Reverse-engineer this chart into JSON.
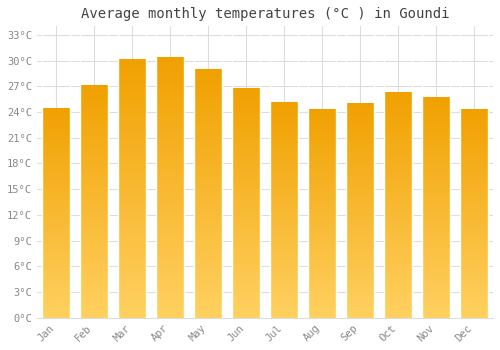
{
  "title": "Average monthly temperatures (°C ) in Goundi",
  "months": [
    "Jan",
    "Feb",
    "Mar",
    "Apr",
    "May",
    "Jun",
    "Jul",
    "Aug",
    "Sep",
    "Oct",
    "Nov",
    "Dec"
  ],
  "values": [
    24.5,
    27.2,
    30.2,
    30.4,
    29.0,
    26.8,
    25.2,
    24.4,
    25.1,
    26.3,
    25.8,
    24.3
  ],
  "ylim": [
    0,
    34
  ],
  "yticks": [
    0,
    3,
    6,
    9,
    12,
    15,
    18,
    21,
    24,
    27,
    30,
    33
  ],
  "ytick_labels": [
    "0°C",
    "3°C",
    "6°C",
    "9°C",
    "12°C",
    "15°C",
    "18°C",
    "21°C",
    "24°C",
    "27°C",
    "30°C",
    "33°C"
  ],
  "bg_color": "#ffffff",
  "grid_color": "#dddddd",
  "title_fontsize": 10,
  "tick_fontsize": 7.5,
  "tick_color": "#888888",
  "title_color": "#444444",
  "bar_color_bottom": "#FFD060",
  "bar_color_top": "#F0A000",
  "bar_edge_color": "#ffffff",
  "bar_width": 0.75
}
